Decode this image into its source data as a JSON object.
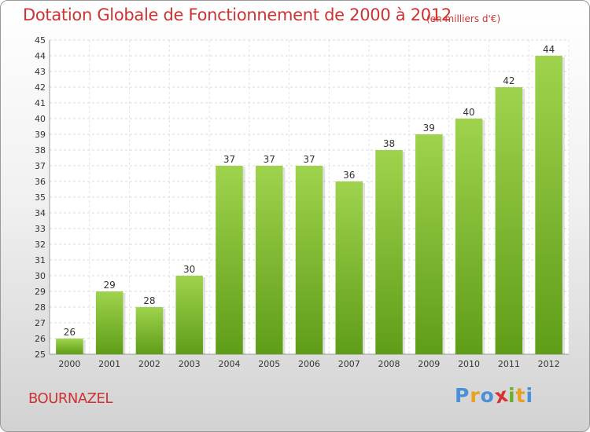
{
  "chart_data": {
    "type": "bar",
    "title": "Dotation Globale de Fonctionnement de 2000 à 2012",
    "subtitle": "(en milliers d'€)",
    "categories": [
      "2000",
      "2001",
      "2002",
      "2003",
      "2004",
      "2005",
      "2006",
      "2007",
      "2008",
      "2009",
      "2010",
      "2011",
      "2012"
    ],
    "values": [
      26,
      29,
      28,
      30,
      37,
      37,
      37,
      36,
      38,
      39,
      40,
      42,
      44
    ],
    "ylim": [
      25,
      45
    ],
    "yticks": [
      25,
      26,
      27,
      28,
      29,
      30,
      31,
      32,
      33,
      34,
      35,
      36,
      37,
      38,
      39,
      40,
      41,
      42,
      43,
      44,
      45
    ],
    "grid": true,
    "bar_color": "#7dbb2e"
  },
  "footer": {
    "place": "BOURNAZEL",
    "logo": [
      "P",
      "r",
      "o",
      "x",
      "i",
      "t",
      "i"
    ],
    "logo_colors": [
      "#4a90d9",
      "#e8a020",
      "#4a90d9",
      "#d93030",
      "#6bb02a",
      "#e8a020",
      "#4a90d9"
    ]
  }
}
